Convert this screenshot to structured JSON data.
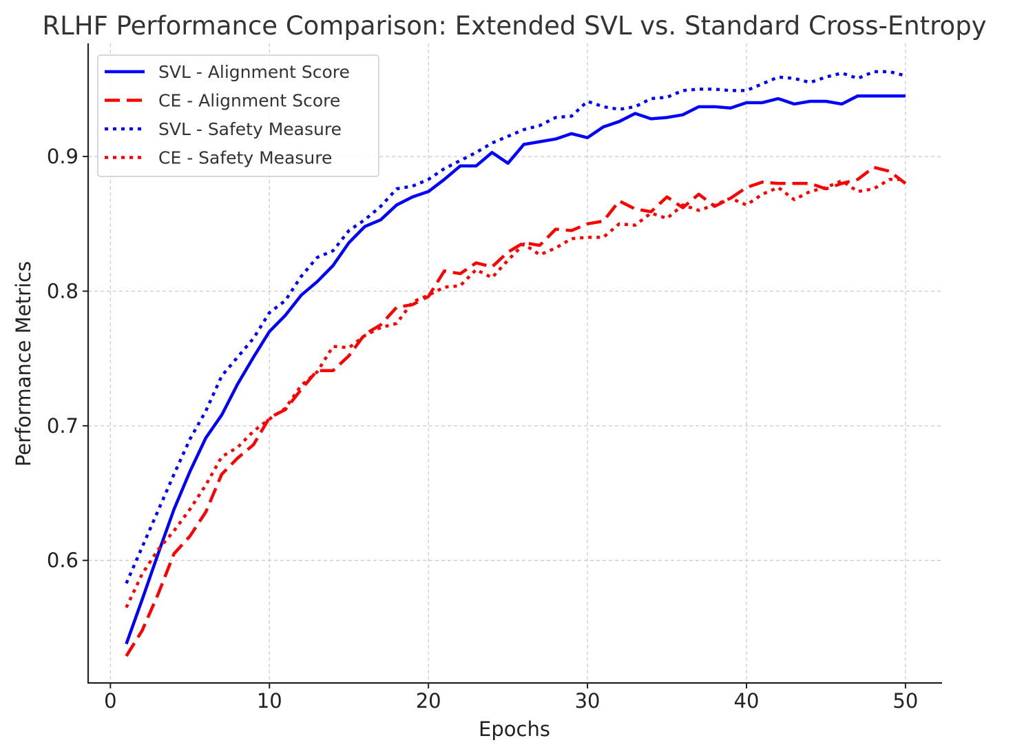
{
  "chart_data": {
    "type": "line",
    "title": "RLHF Performance Comparison: Extended SVL vs. Standard Cross-Entropy",
    "xlabel": "Epochs",
    "ylabel": "Performance Metrics",
    "xlim": [
      -1.4,
      52.3
    ],
    "ylim": [
      0.509,
      0.984
    ],
    "xticks": [
      0,
      10,
      20,
      30,
      40,
      50
    ],
    "xtick_labels": [
      "0",
      "10",
      "20",
      "30",
      "40",
      "50"
    ],
    "yticks": [
      0.6,
      0.7,
      0.8,
      0.9
    ],
    "ytick_labels": [
      "0.6",
      "0.7",
      "0.8",
      "0.9"
    ],
    "grid": true,
    "legend_position": "top-left",
    "x": [
      1,
      2,
      3,
      4,
      5,
      6,
      7,
      8,
      9,
      10,
      11,
      12,
      13,
      14,
      15,
      16,
      17,
      18,
      19,
      20,
      21,
      22,
      23,
      24,
      25,
      26,
      27,
      28,
      29,
      30,
      31,
      32,
      33,
      34,
      35,
      36,
      37,
      38,
      39,
      40,
      41,
      42,
      43,
      44,
      45,
      46,
      47,
      48,
      49,
      50
    ],
    "series": [
      {
        "name": "SVL - Alignment Score",
        "color": "#0000ff",
        "style": "solid",
        "values": [
          0.538,
          0.571,
          0.605,
          0.638,
          0.666,
          0.691,
          0.708,
          0.731,
          0.751,
          0.77,
          0.782,
          0.797,
          0.807,
          0.819,
          0.836,
          0.848,
          0.853,
          0.864,
          0.87,
          0.874,
          0.883,
          0.893,
          0.893,
          0.903,
          0.895,
          0.909,
          0.911,
          0.913,
          0.917,
          0.914,
          0.922,
          0.926,
          0.932,
          0.928,
          0.929,
          0.931,
          0.937,
          0.937,
          0.936,
          0.94,
          0.94,
          0.943,
          0.939,
          0.941,
          0.941,
          0.939,
          0.945,
          0.945,
          0.945,
          0.945
        ]
      },
      {
        "name": "CE - Alignment Score",
        "color": "#ff0000",
        "style": "dashed",
        "values": [
          0.529,
          0.548,
          0.575,
          0.605,
          0.618,
          0.636,
          0.664,
          0.676,
          0.686,
          0.706,
          0.712,
          0.727,
          0.741,
          0.741,
          0.752,
          0.768,
          0.775,
          0.788,
          0.79,
          0.796,
          0.815,
          0.813,
          0.821,
          0.818,
          0.829,
          0.836,
          0.834,
          0.846,
          0.845,
          0.85,
          0.852,
          0.867,
          0.861,
          0.859,
          0.87,
          0.862,
          0.872,
          0.863,
          0.869,
          0.877,
          0.881,
          0.88,
          0.88,
          0.88,
          0.876,
          0.88,
          0.883,
          0.892,
          0.889,
          0.88
        ]
      },
      {
        "name": "SVL - Safety Measure",
        "color": "#0000ff",
        "style": "dotted",
        "values": [
          0.583,
          0.61,
          0.637,
          0.664,
          0.69,
          0.711,
          0.737,
          0.751,
          0.765,
          0.784,
          0.793,
          0.811,
          0.825,
          0.83,
          0.845,
          0.853,
          0.863,
          0.876,
          0.878,
          0.883,
          0.891,
          0.897,
          0.903,
          0.91,
          0.915,
          0.92,
          0.923,
          0.929,
          0.93,
          0.941,
          0.937,
          0.935,
          0.937,
          0.943,
          0.944,
          0.949,
          0.95,
          0.95,
          0.949,
          0.949,
          0.954,
          0.959,
          0.958,
          0.955,
          0.959,
          0.962,
          0.958,
          0.963,
          0.963,
          0.96
        ]
      },
      {
        "name": "CE - Safety Measure",
        "color": "#ff0000",
        "style": "dotted",
        "values": [
          0.565,
          0.59,
          0.608,
          0.622,
          0.638,
          0.656,
          0.677,
          0.684,
          0.696,
          0.705,
          0.713,
          0.73,
          0.74,
          0.759,
          0.758,
          0.767,
          0.773,
          0.776,
          0.792,
          0.797,
          0.803,
          0.804,
          0.816,
          0.81,
          0.823,
          0.835,
          0.827,
          0.832,
          0.839,
          0.84,
          0.84,
          0.85,
          0.849,
          0.858,
          0.854,
          0.864,
          0.86,
          0.864,
          0.869,
          0.864,
          0.872,
          0.877,
          0.868,
          0.874,
          0.877,
          0.882,
          0.874,
          0.876,
          0.883,
          0.883
        ]
      }
    ]
  }
}
